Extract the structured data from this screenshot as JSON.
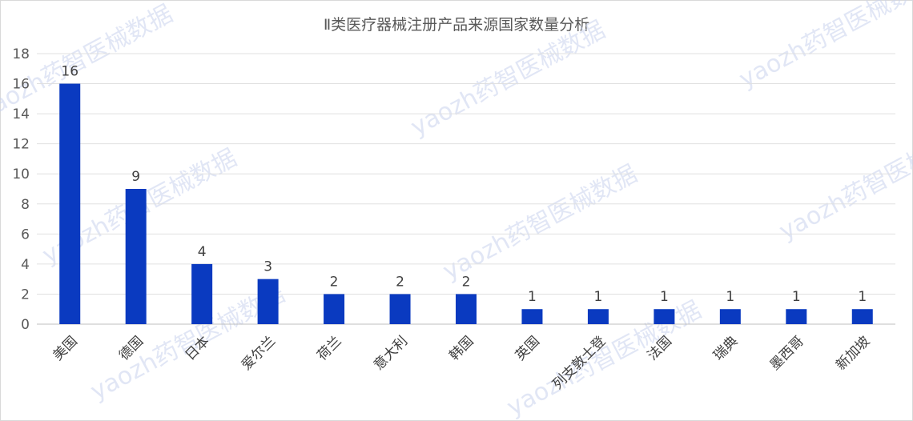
{
  "chart_data": {
    "type": "bar",
    "title": "Ⅱ类医疗器械注册产品来源国家数量分析",
    "categories": [
      "美国",
      "德国",
      "日本",
      "爱尔兰",
      "荷兰",
      "意大利",
      "韩国",
      "英国",
      "列支敦士登",
      "法国",
      "瑞典",
      "墨西哥",
      "新加坡"
    ],
    "values": [
      16,
      9,
      4,
      3,
      2,
      2,
      2,
      1,
      1,
      1,
      1,
      1,
      1
    ],
    "ylim": [
      0,
      18
    ],
    "yticks": [
      0,
      2,
      4,
      6,
      8,
      10,
      12,
      14,
      16,
      18
    ],
    "grid": true,
    "data_labels": true,
    "bar_color": "#0a3ac0",
    "legend": false
  },
  "watermark": {
    "text": "yaozh药智医械数据"
  }
}
